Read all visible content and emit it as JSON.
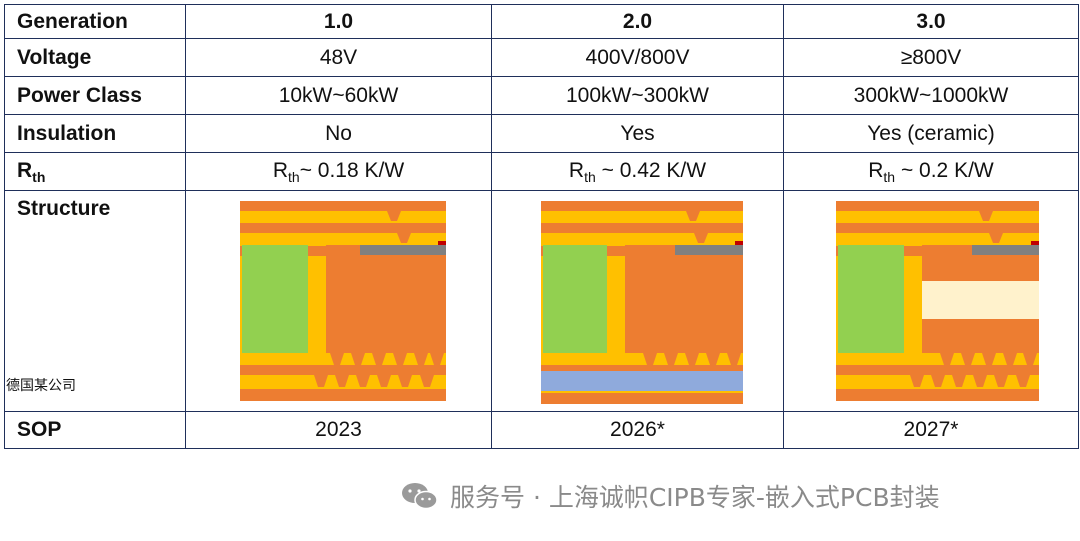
{
  "table": {
    "header": {
      "label": "Generation",
      "cols": [
        "1.0",
        "2.0",
        "3.0"
      ]
    },
    "voltage": {
      "label": "Voltage",
      "cols": [
        "48V",
        "400V/800V",
        "≥800V"
      ]
    },
    "power": {
      "label": "Power Class",
      "cols": [
        "10kW~60kW",
        "100kW~300kW",
        "300kW~1000kW"
      ]
    },
    "insulation": {
      "label": "Insulation",
      "cols": [
        "No",
        "Yes",
        "Yes (ceramic)"
      ]
    },
    "rth": {
      "label_main": "R",
      "label_sub": "th",
      "cols": [
        {
          "main": "R",
          "sub": "th",
          "rest": "~ 0.18 K/W"
        },
        {
          "main": "R",
          "sub": "th",
          "rest": " ~ 0.42 K/W"
        },
        {
          "main": "R",
          "sub": "th",
          "rest": " ~ 0.2 K/W"
        }
      ]
    },
    "structure": {
      "label": "Structure",
      "note": "德国某公司"
    },
    "sop": {
      "label": "SOP",
      "cols": [
        "2023",
        "2026*",
        "2027*"
      ]
    }
  },
  "colors": {
    "orange": "#ed7d31",
    "yellow": "#ffc000",
    "green": "#92d050",
    "blue": "#8faadc",
    "ceramic": "#fff2cc",
    "gray": "#808080",
    "red": "#c00000",
    "border": "#1f2f5a"
  },
  "watermark": {
    "icon": "wechat-icon",
    "text": "服务号 · 上海诚帜CIPB专家-嵌入式PCB封装"
  }
}
